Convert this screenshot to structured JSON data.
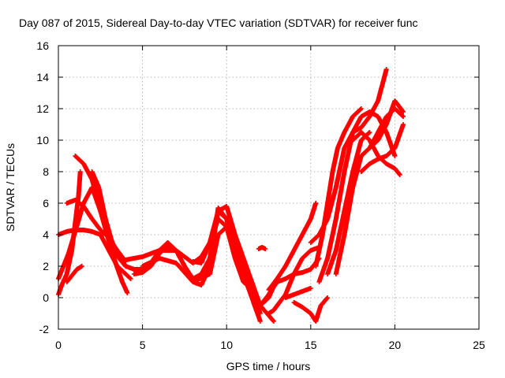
{
  "chart_data": {
    "type": "scatter",
    "title": "Day 087 of 2015, Sidereal Day-to-day VTEC variation (SDTVAR) for receiver func",
    "xlabel": "GPS time / hours",
    "ylabel": "SDTVAR / TECUs",
    "xlim": [
      0,
      25
    ],
    "ylim": [
      -2,
      16
    ],
    "xticks": [
      0,
      5,
      10,
      15,
      20,
      25
    ],
    "yticks": [
      -2,
      0,
      2,
      4,
      6,
      8,
      10,
      12,
      14,
      16
    ],
    "grid": true,
    "marker": "+",
    "color": "#ff0000",
    "series": [
      {
        "x": [
          0.0,
          0.3,
          0.6,
          1.0,
          1.5,
          2.0,
          2.5,
          3.0,
          3.4,
          3.8,
          4.1
        ],
        "y": [
          1.2,
          2.0,
          2.8,
          4.2,
          6.0,
          7.0,
          5.5,
          3.6,
          2.2,
          1.0,
          0.3
        ]
      },
      {
        "x": [
          0.0,
          0.5,
          1.0,
          1.5,
          2.0,
          2.5,
          3.0,
          3.5,
          4.0,
          4.3
        ],
        "y": [
          4.0,
          4.2,
          4.3,
          4.3,
          4.2,
          4.0,
          3.0,
          2.0,
          1.5,
          1.2
        ]
      },
      {
        "x": [
          0.0,
          0.2,
          0.5,
          0.8,
          1.2,
          1.3
        ],
        "y": [
          0.2,
          0.8,
          1.5,
          3.0,
          6.5,
          8.0
        ]
      },
      {
        "x": [
          0.5,
          0.8,
          1.1,
          1.4
        ],
        "y": [
          1.0,
          1.4,
          1.8,
          2.0
        ]
      },
      {
        "x": [
          0.5,
          1.0,
          1.5,
          2.0,
          2.5,
          3.0,
          3.5,
          4.0
        ],
        "y": [
          6.0,
          6.2,
          5.8,
          5.0,
          4.3,
          3.8,
          3.0,
          2.3
        ]
      },
      {
        "x": [
          1.0,
          1.5,
          2.0,
          2.5,
          3.0,
          3.5,
          4.0,
          4.5,
          5.0,
          5.5,
          6.0,
          6.5,
          7.0,
          7.5,
          8.0,
          8.5,
          9.0,
          9.5,
          10.0,
          10.5,
          11.0,
          11.5,
          12.0
        ],
        "y": [
          9.0,
          8.5,
          7.5,
          5.5,
          4.0,
          2.8,
          2.0,
          1.8,
          1.8,
          2.2,
          3.0,
          3.5,
          3.0,
          2.0,
          1.2,
          1.5,
          2.5,
          5.5,
          5.0,
          3.0,
          1.5,
          0.0,
          -1.5
        ]
      },
      {
        "x": [
          2.0,
          2.4,
          2.8,
          3.2,
          3.6,
          4.0
        ],
        "y": [
          8.0,
          7.0,
          5.0,
          3.5,
          2.5,
          2.0
        ]
      },
      {
        "x": [
          4.0,
          5.0,
          6.0,
          7.0,
          7.5,
          8.0,
          8.5,
          9.0,
          9.5,
          10.0,
          10.5,
          11.0,
          11.5,
          12.0
        ],
        "y": [
          2.4,
          2.6,
          3.0,
          3.0,
          2.6,
          2.2,
          2.6,
          3.5,
          5.0,
          4.5,
          3.5,
          2.0,
          0.5,
          -1.0
        ]
      },
      {
        "x": [
          4.5,
          5.0,
          5.5,
          6.0,
          6.5,
          7.0,
          7.5,
          8.0,
          8.5,
          9.0,
          9.5,
          10.0,
          10.5,
          11.0
        ],
        "y": [
          1.5,
          1.6,
          2.0,
          2.8,
          3.3,
          3.0,
          2.0,
          1.0,
          0.8,
          2.0,
          5.7,
          5.0,
          3.0,
          1.5
        ]
      },
      {
        "x": [
          5.0,
          6.0,
          7.0,
          8.0,
          9.0,
          9.5,
          10.0,
          10.5,
          11.0,
          11.5
        ],
        "y": [
          2.0,
          2.5,
          2.2,
          1.0,
          1.5,
          4.0,
          4.5,
          2.5,
          1.0,
          0.5
        ]
      },
      {
        "x": [
          8.0,
          8.5,
          9.0,
          9.5,
          10.0,
          10.5,
          11.0,
          11.5,
          12.0,
          12.5,
          13.0
        ],
        "y": [
          2.3,
          2.2,
          3.5,
          5.5,
          5.8,
          4.0,
          2.5,
          1.0,
          -0.5,
          0.0,
          1.2
        ]
      },
      {
        "x": [
          11.0,
          11.5,
          12.0,
          12.5,
          13.0,
          13.5,
          14.0,
          14.5,
          15.0,
          15.5
        ],
        "y": [
          1.5,
          0.5,
          -0.5,
          0.2,
          1.0,
          1.2,
          1.5,
          1.6,
          1.8,
          2.5
        ]
      },
      {
        "x": [
          12.0,
          12.4,
          12.8
        ],
        "y": [
          -0.5,
          -1.0,
          -1.5
        ]
      },
      {
        "x": [
          12.5,
          12.8,
          13.0
        ],
        "y": [
          -1.0,
          -0.8,
          -0.5
        ]
      },
      {
        "x": [
          11.9,
          12.1,
          12.3
        ],
        "y": [
          3.1,
          3.2,
          3.1
        ]
      },
      {
        "x": [
          12.5,
          13.0,
          13.5,
          14.0,
          14.5,
          15.0,
          15.3
        ],
        "y": [
          0.5,
          1.2,
          2.0,
          3.0,
          4.0,
          5.0,
          6.0
        ]
      },
      {
        "x": [
          13.0,
          13.5,
          14.0,
          14.5,
          15.0,
          15.5
        ],
        "y": [
          -0.5,
          0.2,
          1.5,
          2.5,
          3.0,
          3.2
        ]
      },
      {
        "x": [
          14.0,
          14.5,
          15.0,
          15.3,
          15.6,
          16.0
        ],
        "y": [
          -0.3,
          -0.6,
          -1.0,
          -1.5,
          -0.5,
          0.0
        ]
      },
      {
        "x": [
          13.5,
          14.0,
          14.5,
          15.0
        ],
        "y": [
          0.0,
          0.2,
          0.4,
          0.6
        ]
      },
      {
        "x": [
          15.0,
          15.5,
          16.0,
          16.5,
          17.0,
          17.5,
          18.0,
          18.5,
          19.0,
          19.5
        ],
        "y": [
          3.5,
          4.0,
          5.0,
          7.0,
          9.5,
          10.5,
          10.8,
          11.5,
          12.5,
          14.5
        ]
      },
      {
        "x": [
          15.3,
          15.7,
          16.0,
          16.3,
          16.6,
          17.0,
          17.5,
          18.0
        ],
        "y": [
          2.0,
          4.0,
          6.0,
          8.0,
          9.5,
          10.5,
          11.5,
          12.0
        ]
      },
      {
        "x": [
          15.5,
          16.0,
          16.5,
          17.0,
          17.5,
          18.0,
          18.5,
          19.0,
          19.5,
          20.0
        ],
        "y": [
          1.0,
          2.5,
          5.0,
          8.0,
          10.5,
          11.5,
          11.8,
          11.5,
          10.5,
          9.0
        ]
      },
      {
        "x": [
          16.0,
          16.5,
          17.0,
          17.5,
          18.0,
          18.5
        ],
        "y": [
          1.5,
          3.0,
          5.5,
          8.0,
          10.0,
          10.5
        ]
      },
      {
        "x": [
          16.5,
          17.0,
          17.5,
          18.0,
          18.5,
          19.0,
          19.5,
          20.0,
          20.5
        ],
        "y": [
          1.5,
          4.0,
          7.0,
          9.0,
          9.5,
          10.5,
          11.5,
          12.0,
          11.5
        ]
      },
      {
        "x": [
          17.5,
          18.0,
          18.5,
          19.0,
          19.5,
          20.0,
          20.3
        ],
        "y": [
          10.0,
          10.5,
          10.0,
          9.0,
          8.5,
          8.2,
          7.8
        ]
      },
      {
        "x": [
          18.0,
          18.5,
          19.0,
          19.5,
          20.0,
          20.5
        ],
        "y": [
          8.0,
          8.5,
          8.8,
          9.0,
          9.5,
          11.0
        ]
      },
      {
        "x": [
          18.5,
          19.0,
          19.5,
          20.0,
          20.5
        ],
        "y": [
          9.5,
          10.0,
          11.0,
          12.5,
          11.8
        ]
      }
    ]
  }
}
